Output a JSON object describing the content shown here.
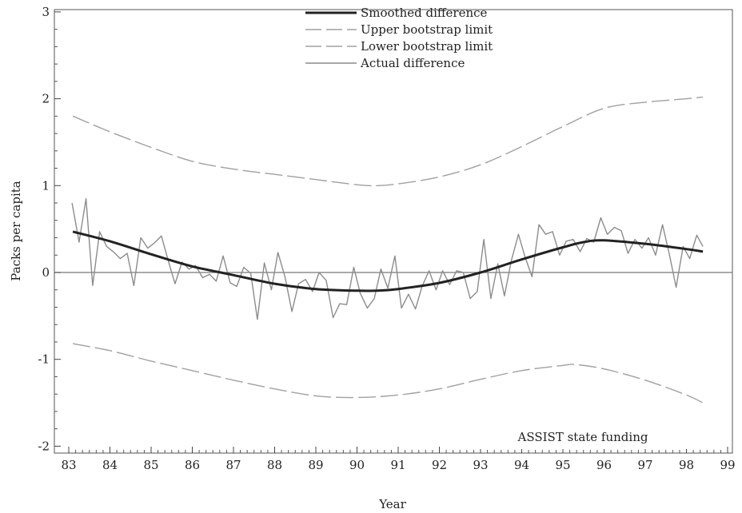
{
  "chart_data": {
    "type": "line",
    "xlabel": "Year",
    "ylabel": "Packs per capita",
    "xlim": [
      83,
      99
    ],
    "ylim": [
      -2.1,
      3.05
    ],
    "x_ticks": [
      "83",
      "84",
      "85",
      "86",
      "87",
      "88",
      "89",
      "90",
      "91",
      "92",
      "93",
      "94",
      "95",
      "96",
      "97",
      "98",
      "99"
    ],
    "y_ticks": [
      "-2",
      "-1",
      "0",
      "1",
      "2",
      "3"
    ],
    "legend_position": "top-center",
    "grid": false,
    "reference_line_y": 0,
    "annotation": "ASSIST state funding",
    "series": [
      {
        "name": "Smoothed difference",
        "style": "solid-thick",
        "color": "#222222",
        "x": [
          83.1,
          84.0,
          85.0,
          86.0,
          87.0,
          88.0,
          89.0,
          90.0,
          90.5,
          91.0,
          92.0,
          93.0,
          94.0,
          95.0,
          95.5,
          96.0,
          97.0,
          98.0,
          98.4
        ],
        "y": [
          0.47,
          0.36,
          0.21,
          0.07,
          -0.03,
          -0.13,
          -0.19,
          -0.21,
          -0.21,
          -0.19,
          -0.12,
          0.0,
          0.15,
          0.29,
          0.35,
          0.37,
          0.33,
          0.27,
          0.24
        ]
      },
      {
        "name": "Upper bootstrap limit",
        "style": "dashed",
        "color": "#a0a0a0",
        "x": [
          83.1,
          84.0,
          85.0,
          86.0,
          87.0,
          88.0,
          89.0,
          90.0,
          90.5,
          91.0,
          92.0,
          93.0,
          94.0,
          95.0,
          96.0,
          97.0,
          98.0,
          98.4
        ],
        "y": [
          1.8,
          1.62,
          1.44,
          1.28,
          1.19,
          1.13,
          1.07,
          1.01,
          1.0,
          1.02,
          1.1,
          1.24,
          1.45,
          1.68,
          1.89,
          1.96,
          2.0,
          2.02
        ]
      },
      {
        "name": "Lower bootstrap limit",
        "style": "dashed",
        "color": "#a0a0a0",
        "x": [
          83.1,
          84.0,
          85.0,
          86.0,
          87.0,
          88.0,
          89.0,
          90.0,
          91.0,
          92.0,
          93.0,
          94.0,
          95.0,
          95.3,
          96.0,
          97.0,
          98.0,
          98.4
        ],
        "y": [
          -0.82,
          -0.9,
          -1.02,
          -1.13,
          -1.24,
          -1.34,
          -1.42,
          -1.44,
          -1.41,
          -1.34,
          -1.23,
          -1.13,
          -1.07,
          -1.06,
          -1.11,
          -1.24,
          -1.41,
          -1.5
        ]
      },
      {
        "name": "Actual difference",
        "style": "solid-thin",
        "color": "#8c8c8c",
        "x": [
          83.08,
          83.25,
          83.42,
          83.58,
          83.75,
          83.92,
          84.08,
          84.25,
          84.42,
          84.58,
          84.75,
          84.92,
          85.08,
          85.25,
          85.42,
          85.58,
          85.75,
          85.92,
          86.08,
          86.25,
          86.42,
          86.58,
          86.75,
          86.92,
          87.08,
          87.25,
          87.42,
          87.58,
          87.75,
          87.92,
          88.08,
          88.25,
          88.42,
          88.58,
          88.75,
          88.92,
          89.08,
          89.25,
          89.42,
          89.58,
          89.75,
          89.92,
          90.08,
          90.25,
          90.42,
          90.58,
          90.75,
          90.92,
          91.08,
          91.25,
          91.42,
          91.58,
          91.75,
          91.92,
          92.08,
          92.25,
          92.42,
          92.58,
          92.75,
          92.92,
          93.08,
          93.25,
          93.42,
          93.58,
          93.75,
          93.92,
          94.08,
          94.25,
          94.42,
          94.58,
          94.75,
          94.92,
          95.08,
          95.25,
          95.42,
          95.58,
          95.75,
          95.92,
          96.08,
          96.25,
          96.42,
          96.58,
          96.75,
          96.92,
          97.08,
          97.25,
          97.42,
          97.58,
          97.75,
          97.92,
          98.08,
          98.25,
          98.4
        ],
        "y": [
          0.8,
          0.35,
          0.85,
          -0.15,
          0.47,
          0.3,
          0.24,
          0.16,
          0.22,
          -0.15,
          0.4,
          0.28,
          0.34,
          0.42,
          0.13,
          -0.13,
          0.12,
          0.04,
          0.08,
          -0.06,
          -0.02,
          -0.1,
          0.19,
          -0.12,
          -0.16,
          0.06,
          -0.01,
          -0.54,
          0.11,
          -0.2,
          0.23,
          -0.05,
          -0.45,
          -0.13,
          -0.08,
          -0.22,
          0.0,
          -0.09,
          -0.52,
          -0.36,
          -0.37,
          0.06,
          -0.24,
          -0.41,
          -0.3,
          0.04,
          -0.18,
          0.19,
          -0.41,
          -0.25,
          -0.42,
          -0.16,
          0.02,
          -0.2,
          0.02,
          -0.14,
          0.02,
          0.0,
          -0.3,
          -0.22,
          0.38,
          -0.3,
          0.1,
          -0.27,
          0.14,
          0.44,
          0.18,
          -0.05,
          0.55,
          0.44,
          0.47,
          0.2,
          0.36,
          0.38,
          0.24,
          0.39,
          0.35,
          0.63,
          0.44,
          0.52,
          0.48,
          0.22,
          0.38,
          0.28,
          0.4,
          0.2,
          0.55,
          0.22,
          -0.17,
          0.3,
          0.16,
          0.43,
          0.3
        ]
      }
    ]
  }
}
